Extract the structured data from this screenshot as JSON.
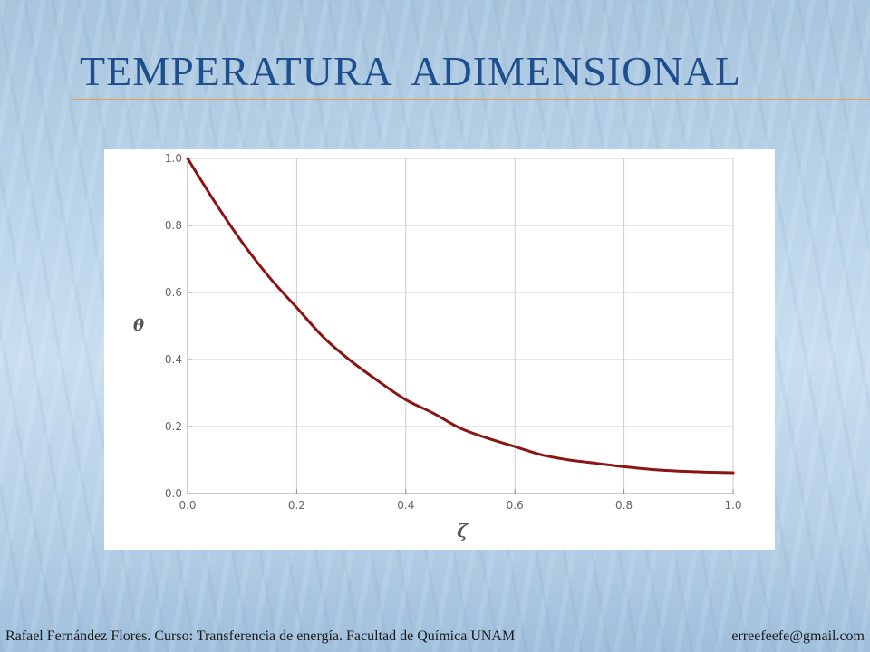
{
  "slide": {
    "title": "TEMPERATURA  ADIMENSIONAL",
    "footer_credit": "Rafael Fernández Flores. Curso: Transferencia de energía. Facultad de Química UNAM",
    "footer_email": "erreefeefe@gmail.com",
    "title_color": "#1f4e8c",
    "rule_color": "#e3a24a"
  },
  "chart_data": {
    "type": "line",
    "title": "",
    "xlabel": "ζ",
    "ylabel": "θ",
    "xlim": [
      0.0,
      1.0
    ],
    "ylim": [
      0.0,
      1.0
    ],
    "xticks": [
      "0.0",
      "0.2",
      "0.4",
      "0.6",
      "0.8",
      "1.0"
    ],
    "yticks": [
      "0.0",
      "0.2",
      "0.4",
      "0.6",
      "0.8",
      "1.0"
    ],
    "grid": true,
    "series": [
      {
        "color": "#8b1414",
        "x": [
          0.0,
          0.05,
          0.1,
          0.15,
          0.2,
          0.25,
          0.3,
          0.35,
          0.4,
          0.45,
          0.5,
          0.55,
          0.6,
          0.65,
          0.7,
          0.75,
          0.8,
          0.85,
          0.9,
          0.95,
          1.0
        ],
        "y": [
          1.0,
          0.87,
          0.75,
          0.645,
          0.555,
          0.465,
          0.395,
          0.335,
          0.28,
          0.24,
          0.195,
          0.165,
          0.14,
          0.115,
          0.1,
          0.09,
          0.08,
          0.072,
          0.067,
          0.064,
          0.062
        ]
      }
    ]
  }
}
